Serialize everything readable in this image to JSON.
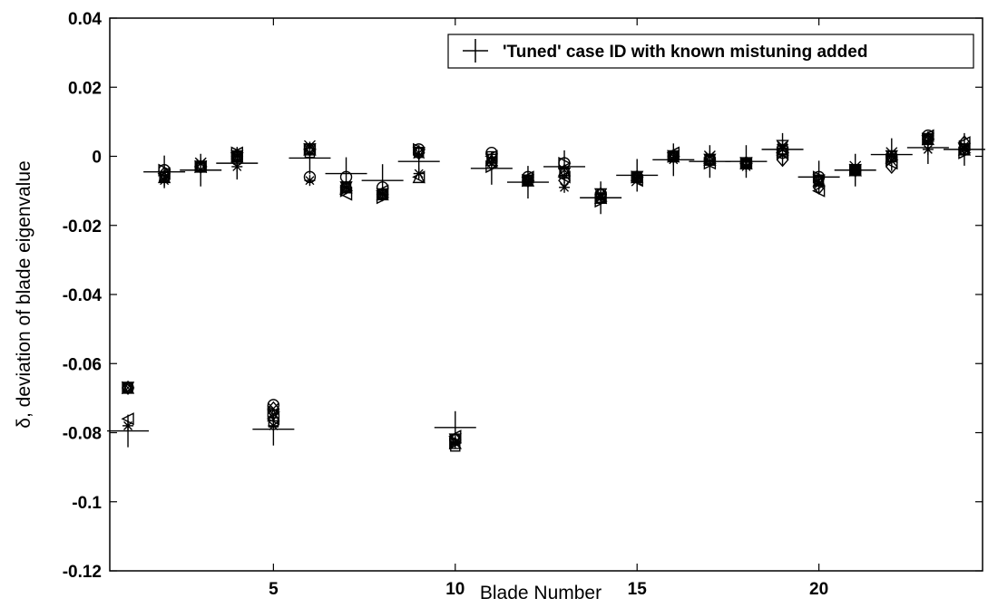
{
  "chart_data": {
    "type": "scatter",
    "title": "",
    "xlabel": "Blade Number",
    "ylabel": "δ, deviation of blade eigenvalue",
    "xlim": [
      0.5,
      24.5
    ],
    "ylim": [
      -0.12,
      0.04
    ],
    "xticks": [
      5,
      10,
      15,
      20
    ],
    "yticks": [
      -0.12,
      -0.1,
      -0.08,
      -0.06,
      -0.04,
      -0.02,
      0,
      0.02,
      0.04
    ],
    "ytick_labels": [
      "-0.12",
      "-0.1",
      "-0.08",
      "-0.06",
      "-0.04",
      "-0.02",
      "0",
      "0.02",
      "0.04"
    ],
    "xtick_labels": [
      "5",
      "10",
      "15",
      "20"
    ],
    "grid": false,
    "legend_position": "top-right",
    "legend": [
      "'Tuned' case ID with known mistuning added"
    ],
    "series": [
      {
        "name": "'Tuned' case ID with known mistuning added",
        "marker": "plus",
        "x": [
          1,
          2,
          3,
          4,
          5,
          6,
          7,
          8,
          9,
          10,
          11,
          12,
          13,
          14,
          15,
          16,
          17,
          18,
          19,
          20,
          21,
          22,
          23,
          24
        ],
        "values": [
          -0.0795,
          -0.0045,
          -0.004,
          -0.002,
          -0.079,
          -0.0005,
          -0.005,
          -0.007,
          -0.0015,
          -0.0785,
          -0.0035,
          -0.0075,
          -0.003,
          -0.012,
          -0.0055,
          -0.001,
          -0.0015,
          -0.0015,
          0.002,
          -0.006,
          -0.004,
          0.0005,
          0.0025,
          0.002
        ]
      },
      {
        "marker": "circle",
        "x": [
          1,
          2,
          3,
          4,
          5,
          6,
          7,
          8,
          9,
          10,
          11,
          12,
          13,
          14,
          15,
          16,
          17,
          18,
          19,
          20,
          21,
          22,
          23,
          24
        ],
        "values": [
          -0.067,
          -0.004,
          -0.003,
          -0.001,
          -0.072,
          -0.006,
          -0.006,
          -0.009,
          0.002,
          -0.082,
          0.001,
          -0.006,
          -0.002,
          -0.011,
          -0.006,
          0.0,
          -0.001,
          -0.002,
          0.001,
          -0.006,
          -0.004,
          0.0,
          0.006,
          0.002
        ]
      },
      {
        "marker": "x",
        "x": [
          1,
          2,
          3,
          4,
          5,
          6,
          7,
          8,
          9,
          10,
          11,
          12,
          13,
          14,
          15,
          16,
          17,
          18,
          19,
          20,
          21,
          22,
          23,
          24
        ],
        "values": [
          -0.067,
          -0.006,
          -0.002,
          0.0,
          -0.073,
          0.003,
          -0.009,
          -0.011,
          0.001,
          -0.083,
          -0.001,
          -0.007,
          -0.004,
          -0.012,
          -0.007,
          0.0,
          0.0,
          -0.002,
          0.002,
          -0.007,
          -0.003,
          0.001,
          0.005,
          0.003
        ]
      },
      {
        "marker": "star",
        "x": [
          1,
          2,
          3,
          4,
          5,
          6,
          7,
          8,
          9,
          10,
          11,
          12,
          13,
          14,
          15,
          16,
          17,
          18,
          19,
          20,
          21,
          22,
          23,
          24
        ],
        "values": [
          -0.078,
          -0.007,
          -0.002,
          -0.003,
          -0.078,
          -0.007,
          -0.009,
          -0.011,
          -0.005,
          -0.083,
          -0.002,
          -0.007,
          -0.009,
          -0.011,
          -0.006,
          -0.001,
          0.0,
          -0.003,
          0.003,
          -0.008,
          -0.004,
          0.0,
          0.002,
          0.002
        ]
      },
      {
        "marker": "triangle-left",
        "x": [
          1,
          2,
          3,
          4,
          5,
          6,
          7,
          8,
          9,
          10,
          11,
          12,
          13,
          14,
          15,
          16,
          17,
          18,
          19,
          20,
          21,
          22,
          23,
          24
        ],
        "values": [
          -0.076,
          -0.005,
          -0.003,
          0.001,
          -0.076,
          0.002,
          -0.011,
          -0.01,
          -0.006,
          -0.081,
          0.0,
          -0.006,
          -0.006,
          -0.012,
          -0.007,
          0.001,
          -0.002,
          -0.002,
          0.001,
          -0.01,
          -0.004,
          -0.002,
          0.006,
          0.004
        ]
      },
      {
        "marker": "triangle-right",
        "x": [
          1,
          2,
          3,
          4,
          5,
          6,
          7,
          8,
          9,
          10,
          11,
          12,
          13,
          14,
          15,
          16,
          17,
          18,
          19,
          20,
          21,
          22,
          23,
          24
        ],
        "values": [
          -0.067,
          -0.004,
          -0.003,
          0.001,
          -0.074,
          0.002,
          -0.01,
          -0.012,
          0.002,
          -0.083,
          -0.003,
          -0.007,
          -0.002,
          -0.013,
          -0.006,
          0.0,
          -0.002,
          -0.002,
          0.001,
          -0.006,
          -0.004,
          -0.001,
          0.005,
          0.001
        ]
      },
      {
        "marker": "diamond",
        "x": [
          1,
          2,
          3,
          4,
          5,
          6,
          7,
          8,
          9,
          10,
          11,
          12,
          13,
          14,
          15,
          16,
          17,
          18,
          19,
          20,
          21,
          22,
          23,
          24
        ],
        "values": [
          -0.067,
          -0.005,
          -0.003,
          0.0,
          -0.073,
          0.002,
          -0.009,
          -0.011,
          0.001,
          -0.082,
          -0.002,
          -0.007,
          -0.007,
          -0.011,
          -0.006,
          0.0,
          -0.001,
          -0.002,
          -0.001,
          -0.009,
          -0.004,
          -0.003,
          0.005,
          0.004
        ]
      },
      {
        "marker": "square",
        "x": [
          1,
          2,
          3,
          4,
          5,
          6,
          7,
          8,
          9,
          10,
          11,
          12,
          13,
          14,
          15,
          16,
          17,
          18,
          19,
          20,
          21,
          22,
          23,
          24
        ],
        "values": [
          -0.067,
          -0.006,
          -0.003,
          0.0,
          -0.077,
          0.001,
          -0.009,
          -0.011,
          0.001,
          -0.084,
          0.0,
          -0.007,
          -0.005,
          -0.012,
          -0.006,
          0.0,
          -0.001,
          -0.002,
          0.002,
          -0.007,
          -0.004,
          0.0,
          0.005,
          0.002
        ]
      },
      {
        "marker": "triangle-down",
        "x": [
          1,
          2,
          3,
          4,
          5,
          6,
          7,
          8,
          9,
          10,
          11,
          12,
          13,
          14,
          15,
          16,
          17,
          18,
          19,
          20,
          21,
          22,
          23,
          24
        ],
        "values": [
          -0.067,
          -0.006,
          -0.003,
          0.0,
          -0.075,
          0.002,
          -0.009,
          -0.011,
          0.001,
          -0.082,
          -0.001,
          -0.007,
          -0.005,
          -0.011,
          -0.006,
          0.0,
          -0.001,
          -0.002,
          0.003,
          -0.007,
          -0.004,
          0.0,
          0.005,
          0.002
        ]
      },
      {
        "marker": "triangle-up",
        "x": [
          1,
          2,
          3,
          4,
          5,
          6,
          7,
          8,
          9,
          10,
          11,
          12,
          13,
          14,
          15,
          16,
          17,
          18,
          19,
          20,
          21,
          22,
          23,
          24
        ],
        "values": [
          -0.067,
          -0.006,
          -0.003,
          0.0,
          -0.075,
          0.002,
          -0.009,
          -0.011,
          -0.006,
          -0.083,
          -0.001,
          -0.007,
          -0.004,
          -0.012,
          -0.006,
          0.0,
          -0.001,
          -0.002,
          0.002,
          -0.007,
          -0.004,
          0.0,
          0.005,
          0.002
        ]
      }
    ]
  }
}
